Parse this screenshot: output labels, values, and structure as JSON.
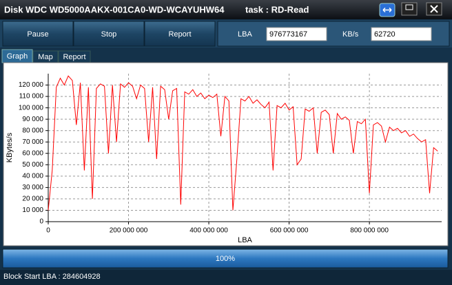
{
  "window": {
    "title": "Disk WDC WD5000AAKX-001CA0-WD-WCAYUHW64",
    "task": "task : RD-Read"
  },
  "buttons": [
    "Pause",
    "Stop",
    "Report"
  ],
  "fields": {
    "lba_label": "LBA",
    "lba_value": "976773167",
    "kbs_label": "KB/s",
    "kbs_value": "62720"
  },
  "tabs": [
    "Graph",
    "Map",
    "Report"
  ],
  "chart_data": {
    "type": "line",
    "xlabel": "LBA",
    "ylabel": "KBytes/s",
    "grid": true,
    "x": [
      0,
      10000000,
      20000000,
      30000000,
      40000000,
      50000000,
      60000000,
      70000000,
      80000000,
      90000000,
      100000000,
      110000000,
      120000000,
      130000000,
      140000000,
      150000000,
      160000000,
      170000000,
      180000000,
      190000000,
      200000000,
      210000000,
      220000000,
      230000000,
      240000000,
      250000000,
      260000000,
      270000000,
      280000000,
      290000000,
      300000000,
      310000000,
      320000000,
      330000000,
      340000000,
      350000000,
      360000000,
      370000000,
      380000000,
      390000000,
      400000000,
      410000000,
      420000000,
      430000000,
      440000000,
      450000000,
      460000000,
      470000000,
      480000000,
      490000000,
      500000000,
      510000000,
      520000000,
      530000000,
      540000000,
      550000000,
      560000000,
      570000000,
      580000000,
      590000000,
      600000000,
      610000000,
      620000000,
      630000000,
      640000000,
      650000000,
      660000000,
      670000000,
      680000000,
      690000000,
      700000000,
      710000000,
      720000000,
      730000000,
      740000000,
      750000000,
      760000000,
      770000000,
      780000000,
      790000000,
      800000000,
      810000000,
      820000000,
      830000000,
      840000000,
      850000000,
      860000000,
      870000000,
      880000000,
      890000000,
      900000000,
      910000000,
      920000000,
      930000000,
      940000000,
      950000000,
      960000000,
      970000000
    ],
    "series": [
      {
        "name": "KB/s",
        "color": "#ff0000",
        "values": [
          10000,
          45000,
          118000,
          126000,
          120000,
          128000,
          124000,
          85000,
          122000,
          45000,
          118000,
          20000,
          117000,
          121000,
          119000,
          60000,
          120000,
          70000,
          121000,
          118000,
          122000,
          119000,
          108000,
          120000,
          117000,
          70000,
          118000,
          55000,
          119000,
          116000,
          90000,
          115000,
          117000,
          15000,
          114000,
          112000,
          116000,
          110000,
          113000,
          108000,
          111000,
          109000,
          112000,
          75000,
          110000,
          106000,
          10000,
          55000,
          108000,
          106000,
          110000,
          104000,
          107000,
          103000,
          100000,
          105000,
          45000,
          102000,
          100000,
          104000,
          98000,
          101000,
          50000,
          55000,
          99000,
          97000,
          100000,
          60000,
          96000,
          98000,
          94000,
          60000,
          95000,
          90000,
          92000,
          89000,
          60000,
          88000,
          86000,
          90000,
          25000,
          85000,
          87000,
          84000,
          70000,
          83000,
          80000,
          82000,
          78000,
          80000,
          75000,
          77000,
          73000,
          70000,
          72000,
          25000,
          65000,
          62000
        ]
      }
    ],
    "xlim": [
      0,
      980000000
    ],
    "xticks": [
      0,
      {
        "value": 200000000,
        "label": "200 000 000"
      },
      {
        "value": 400000000,
        "label": "400 000 000"
      },
      {
        "value": 600000000,
        "label": "600 000 000"
      },
      {
        "value": 800000000,
        "label": "800 000 000"
      }
    ],
    "ylim": [
      0,
      130000
    ],
    "yticks": [
      0,
      {
        "value": 10000,
        "label": "10 000"
      },
      {
        "value": 20000,
        "label": "20 000"
      },
      {
        "value": 30000,
        "label": "30 000"
      },
      {
        "value": 40000,
        "label": "40 000"
      },
      {
        "value": 50000,
        "label": "50 000"
      },
      {
        "value": 60000,
        "label": "60 000"
      },
      {
        "value": 70000,
        "label": "70 000"
      },
      {
        "value": 80000,
        "label": "80 000"
      },
      {
        "value": 90000,
        "label": "90 000"
      },
      {
        "value": 100000,
        "label": "100 000"
      },
      {
        "value": 110000,
        "label": "110 000"
      },
      {
        "value": 120000,
        "label": "120 000"
      }
    ]
  },
  "progress": {
    "label": "100%"
  },
  "status": "Block Start LBA : 284604928"
}
